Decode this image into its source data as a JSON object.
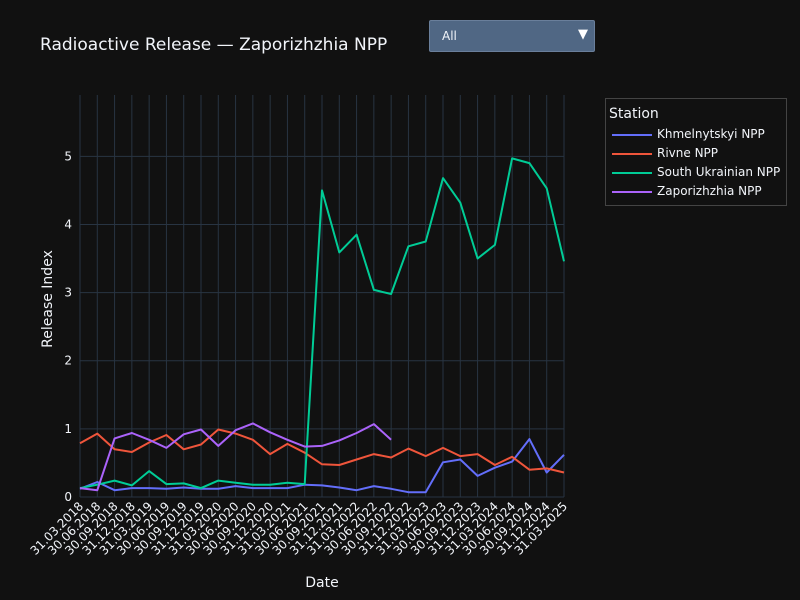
{
  "dropdown": {
    "selected": "All",
    "arrow": "▼"
  },
  "legend": {
    "title": "Station"
  },
  "chart_data": {
    "type": "line",
    "title": "Radioactive Release — Zaporizhzhia NPP",
    "xlabel": "Date",
    "ylabel": "Release Index",
    "ylim": [
      0,
      5.9
    ],
    "yticks": [
      0,
      1,
      2,
      3,
      4,
      5
    ],
    "grid": true,
    "legend_position": "top-right",
    "categories": [
      "31.03.2018",
      "30.06.2018",
      "30.09.2018",
      "31.12.2018",
      "31.03.2019",
      "30.06.2019",
      "30.09.2019",
      "31.12.2019",
      "31.03.2020",
      "30.06.2020",
      "30.09.2020",
      "31.12.2020",
      "31.03.2021",
      "30.06.2021",
      "30.09.2021",
      "31.12.2021",
      "31.03.2022",
      "30.06.2022",
      "30.09.2022",
      "31.12.2022",
      "31.03.2023",
      "30.06.2023",
      "30.09.2023",
      "31.12.2023",
      "31.03.2024",
      "30.06.2024",
      "30.09.2024",
      "31.12.2024",
      "31.03.2025"
    ],
    "series": [
      {
        "name": "Khmelnytskyi NPP",
        "color": "#636efa",
        "values": [
          0.12,
          0.22,
          0.1,
          0.13,
          0.13,
          0.12,
          0.14,
          0.12,
          0.12,
          0.16,
          0.13,
          0.13,
          0.13,
          0.18,
          0.17,
          0.14,
          0.1,
          0.16,
          0.12,
          0.07,
          0.07,
          0.51,
          0.55,
          0.31,
          0.43,
          0.52,
          0.85,
          0.36,
          0.62
        ]
      },
      {
        "name": "Rivne NPP",
        "color": "#ef553b",
        "values": [
          0.79,
          0.93,
          0.7,
          0.66,
          0.8,
          0.91,
          0.7,
          0.77,
          0.99,
          0.93,
          0.84,
          0.63,
          0.78,
          0.65,
          0.48,
          0.47,
          0.55,
          0.63,
          0.58,
          0.71,
          0.6,
          0.72,
          0.6,
          0.63,
          0.47,
          0.59,
          0.4,
          0.42,
          0.36
        ]
      },
      {
        "name": "South Ukrainian NPP",
        "color": "#00cc96",
        "values": [
          0.13,
          0.18,
          0.24,
          0.17,
          0.38,
          0.19,
          0.2,
          0.13,
          0.24,
          0.21,
          0.18,
          0.18,
          0.21,
          0.19,
          4.5,
          3.59,
          3.85,
          3.04,
          2.98,
          3.68,
          3.75,
          4.68,
          4.32,
          3.5,
          3.7,
          4.97,
          4.9,
          4.53,
          3.46
        ]
      },
      {
        "name": "Zaporizhzhia NPP",
        "color": "#ab63fa",
        "values": [
          0.13,
          0.1,
          0.86,
          0.94,
          0.84,
          0.72,
          0.92,
          0.99,
          0.75,
          0.98,
          1.08,
          0.95,
          0.84,
          0.74,
          0.75,
          0.83,
          0.94,
          1.07,
          0.84,
          null,
          null,
          null,
          null,
          null,
          null,
          null,
          null,
          null,
          null
        ]
      }
    ]
  }
}
